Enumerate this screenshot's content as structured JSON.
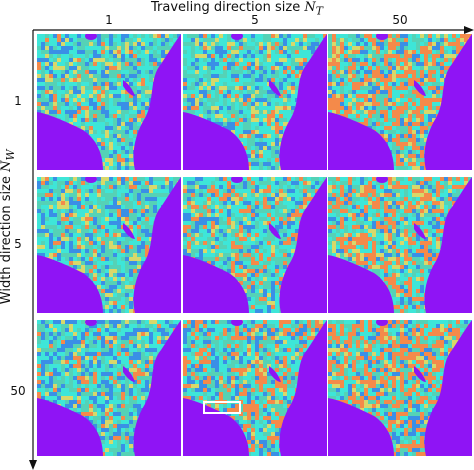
{
  "figure": {
    "x_axis_title": "Traveling direction size",
    "x_axis_symbol": "N",
    "x_axis_subscript": "T",
    "y_axis_title": "Width direction size",
    "y_axis_symbol": "N",
    "y_axis_subscript": "W",
    "columns": [
      "1",
      "5",
      "50"
    ],
    "rows": [
      "1",
      "5",
      "50"
    ],
    "highlight_panel": "row 50, column 5",
    "colors": {
      "water": "#8f14f5",
      "cyan": "#3ee6d8",
      "teal": "#55d2b6",
      "blue": "#3a8fe6",
      "orange": "#f48a4a",
      "yellow": "#d8d86a",
      "highlight_box": "#ffffff"
    }
  }
}
